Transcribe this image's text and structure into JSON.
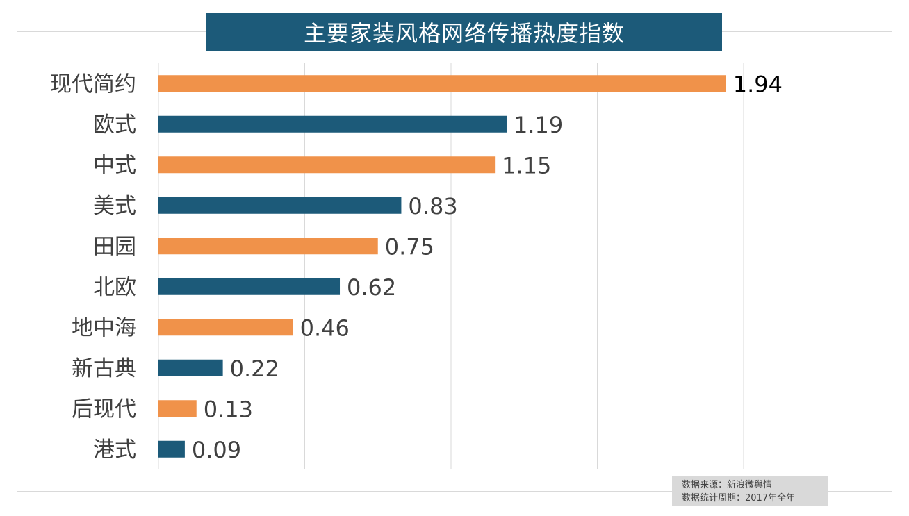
{
  "chart_data": {
    "type": "bar",
    "orientation": "horizontal",
    "title": "主要家装风格网络传播热度指数",
    "categories": [
      "现代简约",
      "欧式",
      "中式",
      "美式",
      "田园",
      "北欧",
      "地中海",
      "新古典",
      "后现代",
      "港式"
    ],
    "values": [
      1.94,
      1.19,
      1.15,
      0.83,
      0.75,
      0.62,
      0.46,
      0.22,
      0.13,
      0.09
    ],
    "bar_colors": [
      "#f0924a",
      "#1c5a79",
      "#f0924a",
      "#1c5a79",
      "#f0924a",
      "#1c5a79",
      "#f0924a",
      "#1c5a79",
      "#f0924a",
      "#1c5a79"
    ],
    "xlim": [
      0,
      2
    ],
    "x_gridlines": [
      0,
      0.5,
      1,
      1.5,
      2
    ],
    "grid": true,
    "data_labels": true,
    "xlabel": "",
    "ylabel": ""
  },
  "source": {
    "line1": "数据来源：新浪微舆情",
    "line2": "数据统计周期：2017年全年"
  },
  "colors": {
    "title_bg": "#1c5a79",
    "orange": "#f0924a",
    "blue": "#1c5a79"
  }
}
